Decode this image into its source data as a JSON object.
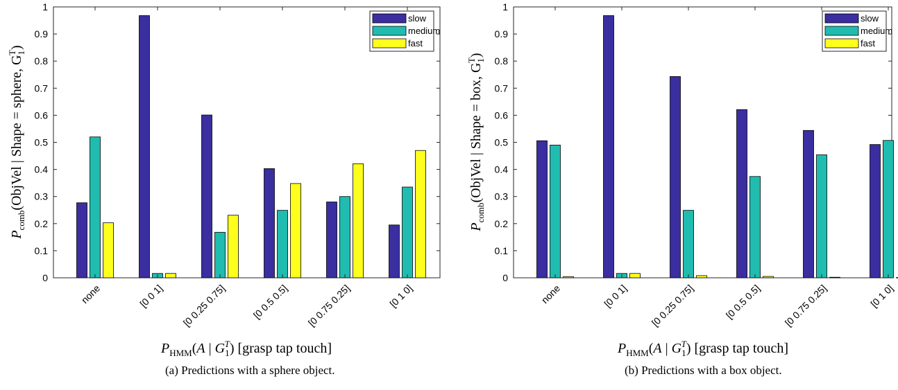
{
  "chart_data": [
    {
      "type": "bar",
      "categories": [
        "none",
        "[0 0 1]",
        "[0 0.25 0.75]",
        "[0 0.5 0.5]",
        "[0 0.75 0.25]",
        "[0 1 0]"
      ],
      "series": [
        {
          "name": "slow",
          "color": "#3a2ea0",
          "values": [
            0.277,
            0.968,
            0.601,
            0.403,
            0.28,
            0.195
          ]
        },
        {
          "name": "medium",
          "color": "#20bcb0",
          "values": [
            0.52,
            0.016,
            0.168,
            0.249,
            0.3,
            0.335
          ]
        },
        {
          "name": "fast",
          "color": "#ffff1e",
          "values": [
            0.203,
            0.016,
            0.231,
            0.348,
            0.421,
            0.47
          ]
        }
      ],
      "ylim": [
        0,
        1
      ],
      "yticks": [
        "0",
        "0.1",
        "0.2",
        "0.3",
        "0.4",
        "0.5",
        "0.6",
        "0.7",
        "0.8",
        "0.9",
        "1"
      ],
      "ylabel": "P_comb(ObjVel | Shape = sphere, G_1^T)",
      "xlabel": "P_HMM(A | G_1^T) [grasp tap touch]",
      "legend_position": "top-right",
      "caption": "(a) Predictions with a sphere object."
    },
    {
      "type": "bar",
      "categories": [
        "none",
        "[0 0 1]",
        "[0 0.25 0.75]",
        "[0 0.5 0.5]",
        "[0 0.75 0.25]",
        "[0 1 0]"
      ],
      "series": [
        {
          "name": "slow",
          "color": "#3a2ea0",
          "values": [
            0.506,
            0.968,
            0.743,
            0.621,
            0.544,
            0.492
          ]
        },
        {
          "name": "medium",
          "color": "#20bcb0",
          "values": [
            0.49,
            0.016,
            0.249,
            0.374,
            0.454,
            0.507
          ]
        },
        {
          "name": "fast",
          "color": "#ffff1e",
          "values": [
            0.004,
            0.016,
            0.008,
            0.005,
            0.002,
            0.001
          ]
        }
      ],
      "ylim": [
        0,
        1
      ],
      "yticks": [
        "0",
        "0.1",
        "0.2",
        "0.3",
        "0.4",
        "0.5",
        "0.6",
        "0.7",
        "0.8",
        "0.9",
        "1"
      ],
      "ylabel": "P_comb(ObjVel | Shape = box, G_1^T)",
      "xlabel": "P_HMM(A | G_1^T) [grasp tap touch]",
      "legend_position": "top-right",
      "caption": "(b) Predictions with a box object."
    }
  ]
}
